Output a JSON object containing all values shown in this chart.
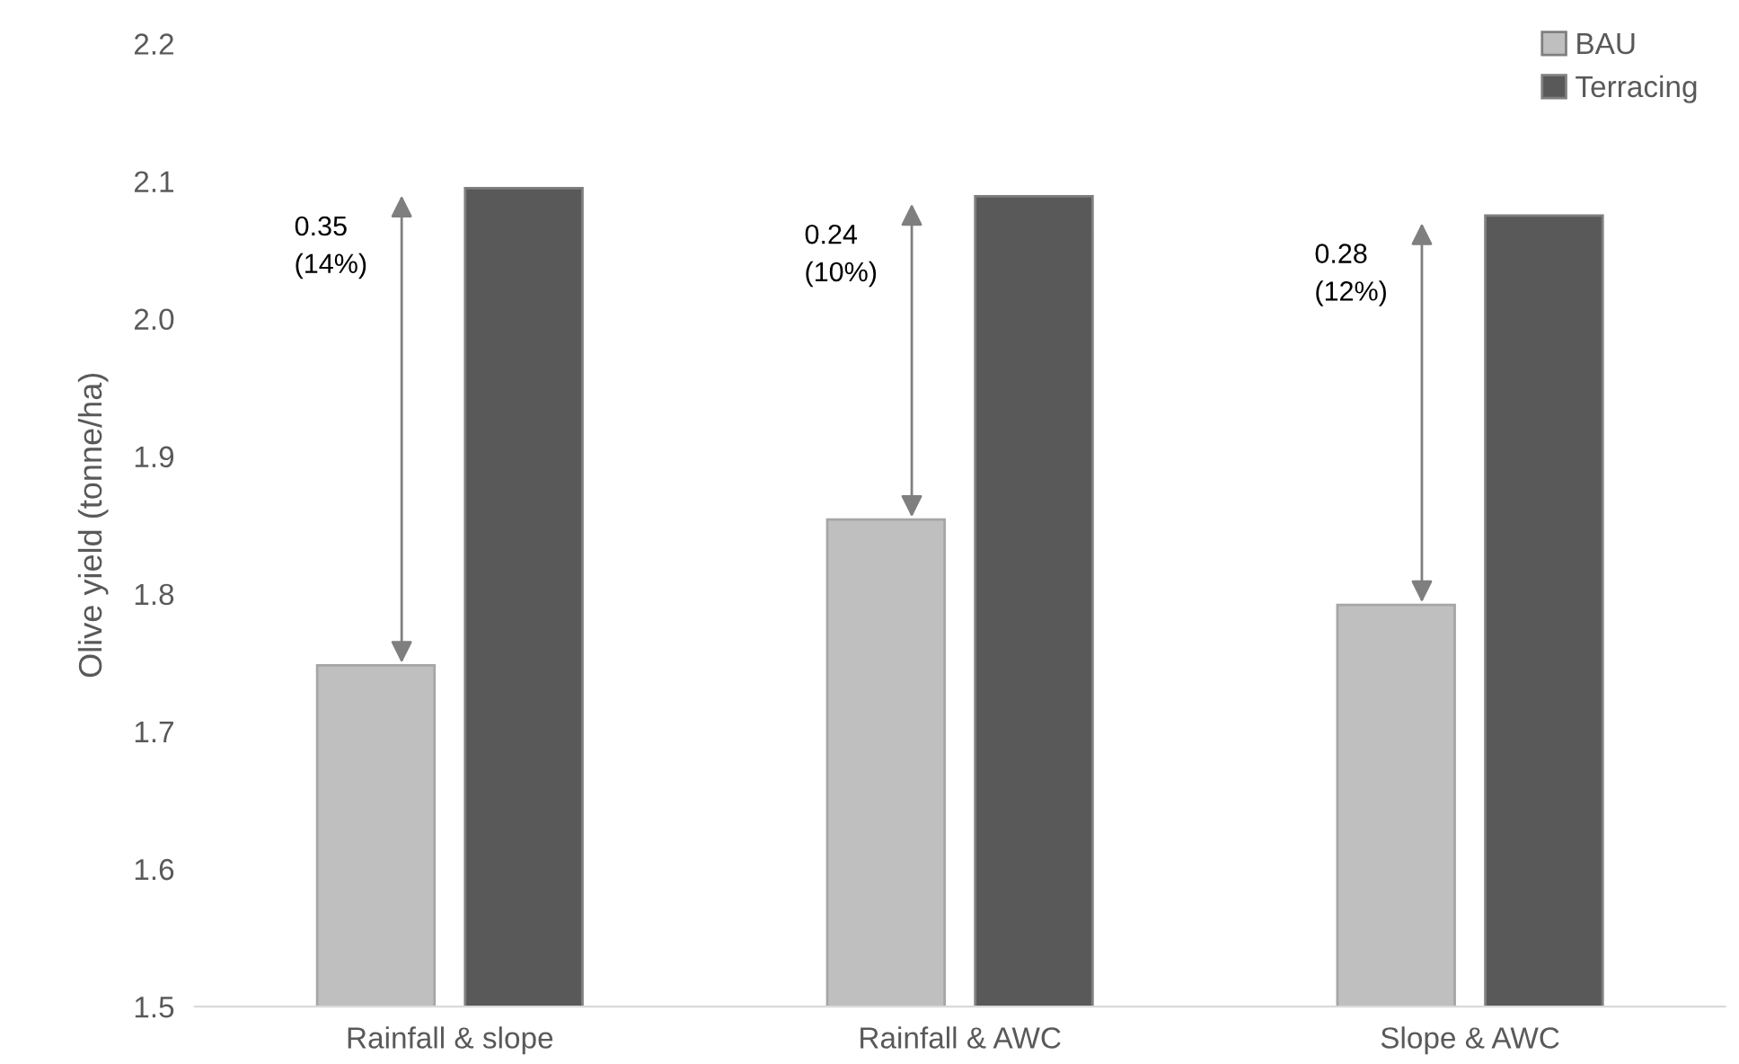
{
  "chart_data": {
    "type": "bar",
    "ylabel": "Olive yield (tonne/ha)",
    "categories": [
      "Rainfall & slope",
      "Rainfall & AWC",
      "Slope & AWC"
    ],
    "series": [
      {
        "name": "BAU",
        "color": "#bfbfbf",
        "values": [
          1.748,
          1.854,
          1.792
        ]
      },
      {
        "name": "Terracing",
        "color": "#595959",
        "values": [
          2.095,
          2.089,
          2.075
        ]
      }
    ],
    "ylim": [
      1.5,
      2.2
    ],
    "yticks": [
      1.5,
      1.6,
      1.7,
      1.8,
      1.9,
      {
        "value": 2.0,
        "label": "2.0"
      },
      2.1,
      2.2
    ],
    "grid": false,
    "legend": "top right",
    "annotations": [
      "0.35\n(14%)",
      "0.24\n(10%)",
      "0.28\n(12%)"
    ]
  }
}
